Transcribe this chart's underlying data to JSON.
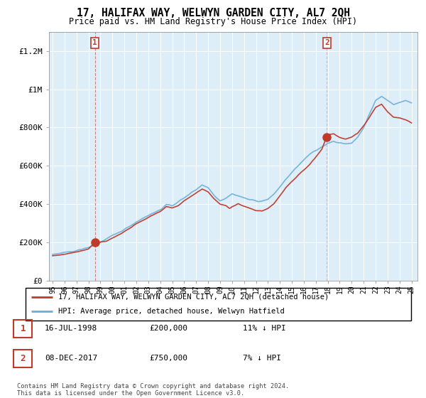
{
  "title": "17, HALIFAX WAY, WELWYN GARDEN CITY, AL7 2QH",
  "subtitle": "Price paid vs. HM Land Registry's House Price Index (HPI)",
  "legend_line1": "17, HALIFAX WAY, WELWYN GARDEN CITY, AL7 2QH (detached house)",
  "legend_line2": "HPI: Average price, detached house, Welwyn Hatfield",
  "table_row1": [
    "1",
    "16-JUL-1998",
    "£200,000",
    "11% ↓ HPI"
  ],
  "table_row2": [
    "2",
    "08-DEC-2017",
    "£750,000",
    "7% ↓ HPI"
  ],
  "footer": "Contains HM Land Registry data © Crown copyright and database right 2024.\nThis data is licensed under the Open Government Licence v3.0.",
  "hpi_color": "#6baed6",
  "price_color": "#c0392b",
  "bg_fill_color": "#ddeeff",
  "ylim": [
    0,
    1300000
  ],
  "yticks": [
    0,
    200000,
    400000,
    600000,
    800000,
    1000000,
    1200000
  ],
  "ytick_labels": [
    "£0",
    "£200K",
    "£400K",
    "£600K",
    "£800K",
    "£1M",
    "£1.2M"
  ],
  "year_start": 1995,
  "year_end": 2025,
  "marker1_year": 1998.54,
  "marker2_year": 2017.93,
  "marker1_value": 200000,
  "marker2_value": 750000
}
